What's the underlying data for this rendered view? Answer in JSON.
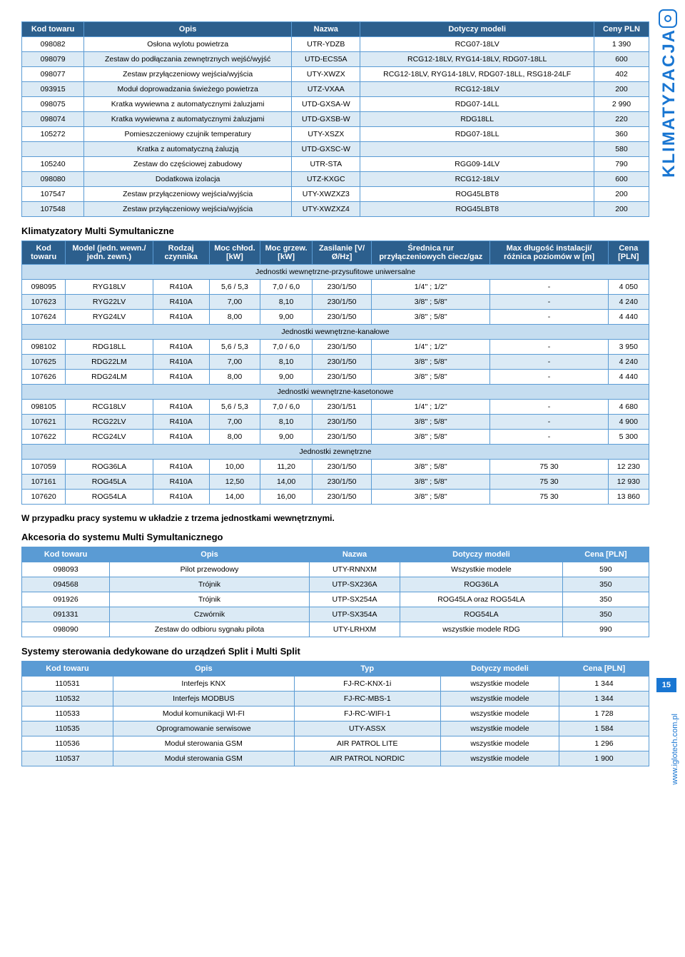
{
  "side": {
    "label": "KLIMATYZACJA",
    "page": "15",
    "url": "www.iglotech.com.pl"
  },
  "table1": {
    "headers": [
      "Kod towaru",
      "Opis",
      "Nazwa",
      "Dotyczy modeli",
      "Ceny PLN"
    ],
    "rows": [
      [
        "098082",
        "Osłona wylotu powietrza",
        "UTR-YDZB",
        "RCG07-18LV",
        "1 390"
      ],
      [
        "098079",
        "Zestaw do podłączania zewnętrznych wejść/wyjść",
        "UTD-ECS5A",
        "RCG12-18LV, RYG14-18LV, RDG07-18LL",
        "600"
      ],
      [
        "098077",
        "Zestaw przyłączeniowy wejścia/wyjścia",
        "UTY-XWZX",
        "RCG12-18LV, RYG14-18LV, RDG07-18LL, RSG18-24LF",
        "402"
      ],
      [
        "093915",
        "Moduł doprowadzania świeżego powietrza",
        "UTZ-VXAA",
        "RCG12-18LV",
        "200"
      ],
      [
        "098075",
        "Kratka wywiewna z automatycznymi żaluzjami",
        "UTD-GXSA-W",
        "RDG07-14LL",
        "2 990"
      ],
      [
        "098074",
        "Kratka wywiewna z automatycznymi żaluzjami",
        "UTD-GXSB-W",
        "RDG18LL",
        "220"
      ],
      [
        "105272",
        "Pomieszczeniowy czujnik temperatury",
        "UTY-XSZX",
        "RDG07-18LL",
        "360"
      ],
      [
        "",
        "Kratka z automatyczną żaluzją",
        "UTD-GXSC-W",
        "",
        "580"
      ],
      [
        "105240",
        "Zestaw do częściowej zabudowy",
        "UTR-STA",
        "RGG09-14LV",
        "790"
      ],
      [
        "098080",
        "Dodatkowa izolacja",
        "UTZ-KXGC",
        "RCG12-18LV",
        "600"
      ],
      [
        "107547",
        "Zestaw przyłączeniowy wejścia/wyjścia",
        "UTY-XWZXZ3",
        "ROG45LBT8",
        "200"
      ],
      [
        "107548",
        "Zestaw przyłączeniowy wejścia/wyjścia",
        "UTY-XWZXZ4",
        "ROG45LBT8",
        "200"
      ]
    ]
  },
  "section2_title": "Klimatyzatory Multi Symultaniczne",
  "table2": {
    "headers": [
      "Kod towaru",
      "Model (jedn. wewn./ jedn. zewn.)",
      "Rodzaj czynnika",
      "Moc chłod. [kW]",
      "Moc grzew. [kW]",
      "Zasilanie [V/Ø/Hz]",
      "Średnica rur przyłączeniowych ciecz/gaz",
      "Max długość instalacji/ różnica poziomów w [m]",
      "Cena [PLN]"
    ],
    "groups": [
      {
        "label": "Jednostki wewnętrzne-przysufitowe uniwersalne",
        "rows": [
          [
            "098095",
            "RYG18LV",
            "R410A",
            "5,6 / 5,3",
            "7,0 / 6,0",
            "230/1/50",
            "1/4'' ; 1/2''",
            "-",
            "4 050"
          ],
          [
            "107623",
            "RYG22LV",
            "R410A",
            "7,00",
            "8,10",
            "230/1/50",
            "3/8'' ; 5/8''",
            "-",
            "4 240"
          ],
          [
            "107624",
            "RYG24LV",
            "R410A",
            "8,00",
            "9,00",
            "230/1/50",
            "3/8'' ; 5/8''",
            "-",
            "4 440"
          ]
        ]
      },
      {
        "label": "Jednostki wewnętrzne-kanałowe",
        "rows": [
          [
            "098102",
            "RDG18LL",
            "R410A",
            "5,6 / 5,3",
            "7,0 / 6,0",
            "230/1/50",
            "1/4'' ; 1/2''",
            "-",
            "3 950"
          ],
          [
            "107625",
            "RDG22LM",
            "R410A",
            "7,00",
            "8,10",
            "230/1/50",
            "3/8'' ; 5/8''",
            "-",
            "4 240"
          ],
          [
            "107626",
            "RDG24LM",
            "R410A",
            "8,00",
            "9,00",
            "230/1/50",
            "3/8'' ; 5/8''",
            "-",
            "4 440"
          ]
        ]
      },
      {
        "label": "Jednostki wewnętrzne-kasetonowe",
        "rows": [
          [
            "098105",
            "RCG18LV",
            "R410A",
            "5,6 / 5,3",
            "7,0 / 6,0",
            "230/1/51",
            "1/4'' ; 1/2''",
            "-",
            "4 680"
          ],
          [
            "107621",
            "RCG22LV",
            "R410A",
            "7,00",
            "8,10",
            "230/1/50",
            "3/8'' ; 5/8''",
            "-",
            "4 900"
          ],
          [
            "107622",
            "RCG24LV",
            "R410A",
            "8,00",
            "9,00",
            "230/1/50",
            "3/8'' ; 5/8''",
            "-",
            "5 300"
          ]
        ]
      },
      {
        "label": "Jednostki zewnętrzne",
        "rows": [
          [
            "107059",
            "ROG36LA",
            "R410A",
            "10,00",
            "11,20",
            "230/1/50",
            "3/8'' ; 5/8''",
            "75 30",
            "12 230"
          ],
          [
            "107161",
            "ROG45LA",
            "R410A",
            "12,50",
            "14,00",
            "230/1/50",
            "3/8'' ; 5/8''",
            "75 30",
            "12 930"
          ],
          [
            "107620",
            "ROG54LA",
            "R410A",
            "14,00",
            "16,00",
            "230/1/50",
            "3/8'' ; 5/8''",
            "75 30",
            "13 860"
          ]
        ]
      }
    ]
  },
  "note": "W przypadku pracy systemu w układzie z trzema jednostkami wewnętrznymi.",
  "section3_title": "Akcesoria do systemu Multi Symultanicznego",
  "table3": {
    "headers": [
      "Kod towaru",
      "Opis",
      "Nazwa",
      "Dotyczy modeli",
      "Cena [PLN]"
    ],
    "rows": [
      [
        "098093",
        "Pilot przewodowy",
        "UTY-RNNXM",
        "Wszystkie modele",
        "590"
      ],
      [
        "094568",
        "Trójnik",
        "UTP-SX236A",
        "ROG36LA",
        "350"
      ],
      [
        "091926",
        "Trójnik",
        "UTP-SX254A",
        "ROG45LA oraz ROG54LA",
        "350"
      ],
      [
        "091331",
        "Czwórnik",
        "UTP-SX354A",
        "ROG54LA",
        "350"
      ],
      [
        "098090",
        "Zestaw do odbioru sygnału pilota",
        "UTY-LRHXM",
        "wszystkie modele RDG",
        "990"
      ]
    ]
  },
  "section4_title": "Systemy sterowania dedykowane do urządzeń Split i Multi Split",
  "table4": {
    "headers": [
      "Kod towaru",
      "Opis",
      "Typ",
      "Dotyczy modeli",
      "Cena [PLN]"
    ],
    "rows": [
      [
        "110531",
        "Interfejs KNX",
        "FJ-RC-KNX-1i",
        "wszystkie modele",
        "1 344"
      ],
      [
        "110532",
        "Interfejs MODBUS",
        "FJ-RC-MBS-1",
        "wszystkie modele",
        "1 344"
      ],
      [
        "110533",
        "Moduł komunikacji WI-FI",
        "FJ-RC-WIFI-1",
        "wszystkie modele",
        "1 728"
      ],
      [
        "110535",
        "Oprogramowanie serwisowe",
        "UTY-ASSX",
        "wszystkie modele",
        "1 584"
      ],
      [
        "110536",
        "Moduł sterowania GSM",
        "AIR PATROL LITE",
        "wszystkie modele",
        "1 296"
      ],
      [
        "110537",
        "Moduł sterowania GSM",
        "AIR PATROL NORDIC",
        "wszystkie modele",
        "1 900"
      ]
    ]
  },
  "colors": {
    "header_dark": "#2c5f8d",
    "header_blue": "#5a9bd4",
    "row_alt": "#dbeaf5",
    "section_row": "#c5ddf0",
    "border": "#5a9bd4",
    "accent": "#1976d2"
  }
}
